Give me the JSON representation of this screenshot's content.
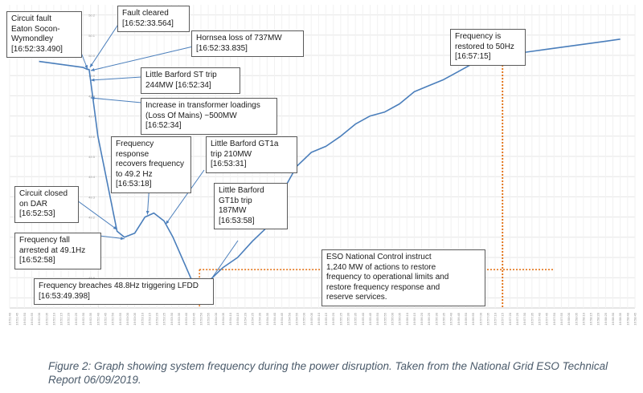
{
  "chart_data": {
    "type": "line",
    "series": [
      {
        "x": [
          "16:52:00",
          "16:52:10",
          "16:52:20",
          "16:52:30",
          "16:52:33",
          "16:52:34",
          "16:52:40",
          "16:52:53",
          "16:52:58",
          "16:53:05",
          "16:53:12",
          "16:53:18",
          "16:53:25",
          "16:53:31",
          "16:53:40",
          "16:53:49",
          "16:53:55",
          "16:54:05",
          "16:54:15",
          "16:54:25",
          "16:54:35",
          "16:54:45",
          "16:54:55",
          "16:55:05",
          "16:55:15",
          "16:55:25",
          "16:55:35",
          "16:55:45",
          "16:55:55",
          "16:56:05",
          "16:56:15",
          "16:56:25",
          "16:56:35",
          "16:56:45",
          "16:56:55",
          "16:57:05",
          "16:57:15",
          "16:57:25",
          "16:57:35",
          "16:57:45",
          "16:57:55",
          "16:58:05",
          "16:58:15",
          "16:58:25",
          "16:58:35"
        ],
        "values": [
          49.97,
          49.96,
          49.95,
          49.94,
          49.93,
          49.93,
          49.6,
          49.13,
          49.1,
          49.12,
          49.2,
          49.22,
          49.18,
          49.1,
          48.95,
          48.8,
          48.88,
          48.95,
          49.0,
          49.08,
          49.15,
          49.32,
          49.45,
          49.52,
          49.55,
          49.6,
          49.66,
          49.7,
          49.72,
          49.76,
          49.82,
          49.85,
          49.88,
          49.92,
          49.96,
          49.98,
          50.0,
          50.01,
          50.02,
          50.03,
          50.04,
          50.05,
          50.06,
          50.07,
          50.08
        ]
      }
    ],
    "x_tick_labels": [
      "16:51:40",
      "16:51:45",
      "16:51:50",
      "16:51:55",
      "16:52:00",
      "16:52:05",
      "16:52:10",
      "16:52:15",
      "16:52:20",
      "16:52:25",
      "16:52:30",
      "16:52:35",
      "16:52:40",
      "16:52:45",
      "16:52:50",
      "16:52:55",
      "16:53:00",
      "16:53:05",
      "16:53:10",
      "16:53:15",
      "16:53:20",
      "16:53:25",
      "16:53:30",
      "16:53:35",
      "16:53:40",
      "16:53:45",
      "16:53:50",
      "16:53:55",
      "16:54:00",
      "16:54:05",
      "16:54:10",
      "16:54:15",
      "16:54:20",
      "16:54:25",
      "16:54:30",
      "16:54:35",
      "16:54:40",
      "16:54:45",
      "16:54:50",
      "16:54:55",
      "16:55:00",
      "16:55:05",
      "16:55:10",
      "16:55:15",
      "16:55:20",
      "16:55:25",
      "16:55:30",
      "16:55:35",
      "16:55:40",
      "16:55:45",
      "16:55:50",
      "16:55:55",
      "16:56:00",
      "16:56:05",
      "16:56:10",
      "16:56:15",
      "16:56:20",
      "16:56:25",
      "16:56:30",
      "16:56:35",
      "16:56:40",
      "16:56:45",
      "16:56:50",
      "16:56:55",
      "16:57:00",
      "16:57:05",
      "16:57:10",
      "16:57:15",
      "16:57:20",
      "16:57:25",
      "16:57:30",
      "16:57:35",
      "16:57:40",
      "16:57:45",
      "16:57:50",
      "16:57:55",
      "16:58:00",
      "16:58:05",
      "16:58:10",
      "16:58:15",
      "16:58:20",
      "16:58:25",
      "16:58:30",
      "16:58:35",
      "16:58:40",
      "16:58:45"
    ],
    "y_tick_labels": [
      "50.2",
      "50.1",
      "50.0",
      "49.9",
      "49.8",
      "49.7",
      "49.6",
      "49.5",
      "49.4",
      "49.3",
      "49.2",
      "49.1",
      "49.0",
      "48.9",
      "48.8"
    ],
    "ylim": [
      48.75,
      50.25
    ],
    "grid": true,
    "line_color": "#4a7ebb",
    "marker_color": "#e26b0a",
    "annotations": [
      {
        "id": "fault",
        "text": "Circuit        fault\nEaton       Socon-\nWymondley\n[16:52:33.490]"
      },
      {
        "id": "fault-cleared",
        "text": "Fault cleared\n[16:52:33.564]"
      },
      {
        "id": "hornsea",
        "text": "Hornsea loss of 737MW\n[16:52:33.835]"
      },
      {
        "id": "barford-st",
        "text": "Little Barford ST trip\n244MW [16:52:34]"
      },
      {
        "id": "transformer",
        "text": "Increase in transformer loadings\n(Loss Of Mains) ~500MW\n[16:52:34]"
      },
      {
        "id": "freq-response",
        "text": "Frequency response\nrecovers frequency\nto 49.2 Hz\n[16:53:18]"
      },
      {
        "id": "gt1a",
        "text": "Little Barford GT1a\ntrip 210MW\n[16:53:31]"
      },
      {
        "id": "circuit-closed",
        "text": "Circuit closed\non DAR\n[16:52:53]"
      },
      {
        "id": "gt1b",
        "text": "Little Barford\nGT1b trip\n187MW\n[16:53:58]"
      },
      {
        "id": "freq-fall",
        "text": "Frequency fall\narrested at 49.1Hz\n[16:52:58]"
      },
      {
        "id": "eso",
        "text": "ESO National Control instruct\n1,240 MW of actions to restore\nfrequency to operational limits and\nrestore frequency response and\nreserve services."
      },
      {
        "id": "lfdd",
        "text": "Frequency breaches 48.8Hz triggering LFDD\n[16:53:49.398]"
      },
      {
        "id": "restored",
        "text": "Frequency is\nrestored to 50Hz\n[16:57:15]"
      }
    ]
  },
  "caption": "Figure 2: Graph showing system frequency during the power disruption. Taken from the National Grid ESO Technical Report 06/09/2019."
}
